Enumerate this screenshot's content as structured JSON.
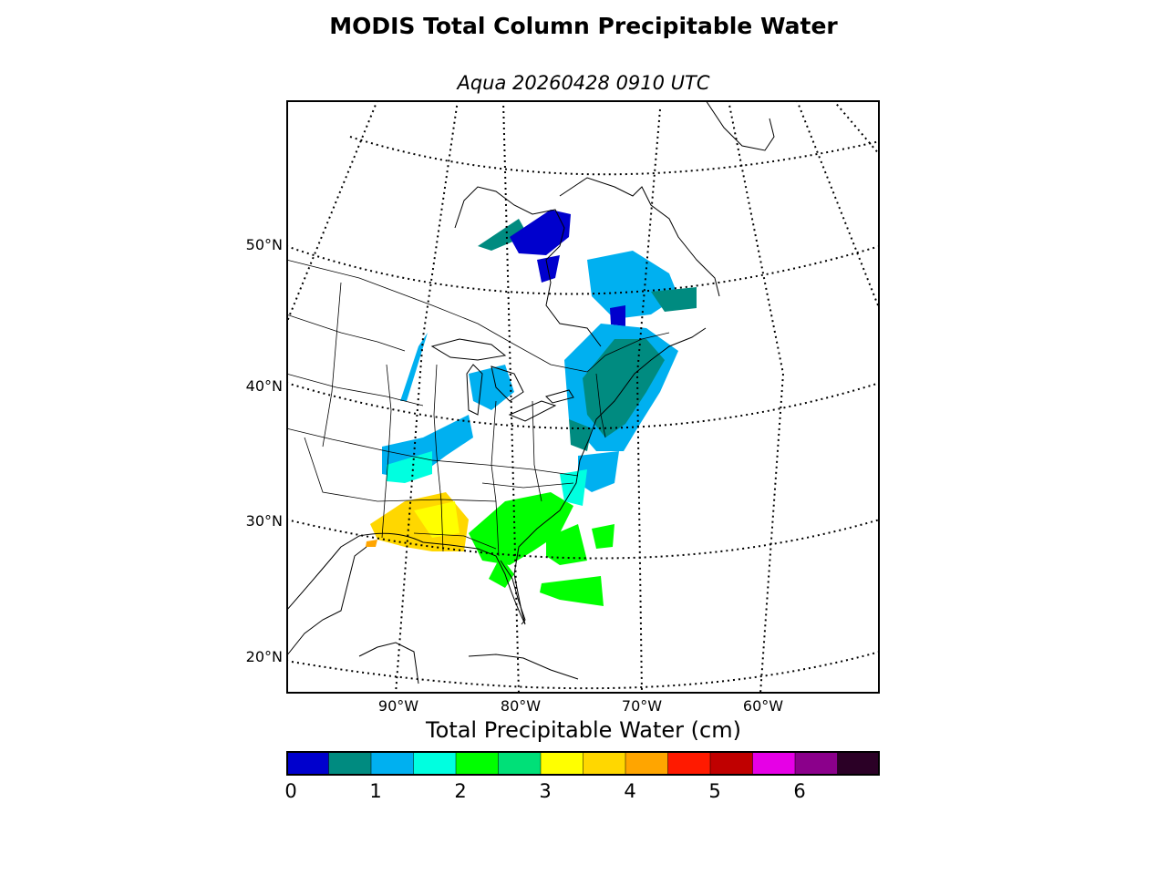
{
  "title": "MODIS Total Column Precipitable Water",
  "subtitle": "Aqua 20260428 0910 UTC",
  "lat_labels": [
    "50°N",
    "40°N",
    "30°N",
    "20°N"
  ],
  "lon_labels": [
    "90°W",
    "80°W",
    "70°W",
    "60°W"
  ],
  "colorbar": {
    "title": "Total Precipitable Water (cm)",
    "tick_labels": [
      "0",
      "1",
      "2",
      "3",
      "4",
      "5",
      "6"
    ],
    "bins": [
      0,
      0.5,
      1,
      1.5,
      2,
      2.5,
      3,
      3.5,
      4,
      4.5,
      5,
      5.5,
      6,
      6.5,
      7
    ],
    "colors": [
      "#0000cd",
      "#008b80",
      "#00b0f0",
      "#00ffe0",
      "#00ff00",
      "#00e078",
      "#ffff00",
      "#ffd700",
      "#ffa500",
      "#ff1a00",
      "#c00000",
      "#e600e6",
      "#8b008b",
      "#2b0026"
    ]
  }
}
